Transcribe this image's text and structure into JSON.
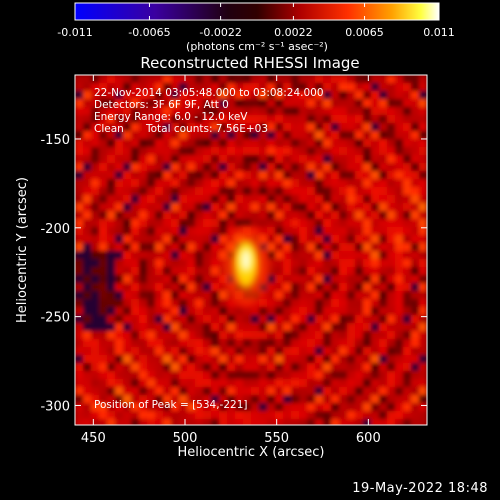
{
  "chart_data": {
    "type": "heatmap",
    "title": "Reconstructed RHESSI Image",
    "xlabel": "Heliocentric X (arcsec)",
    "ylabel": "Heliocentric Y (arcsec)",
    "xlim": [
      440,
      632
    ],
    "ylim": [
      -311,
      -114
    ],
    "xticks": [
      450,
      500,
      550,
      600
    ],
    "yticks": [
      -150,
      -200,
      -250,
      -300
    ],
    "colorbar": {
      "min": -0.011,
      "max": 0.011,
      "ticks": [
        "-0.011",
        "-0.0065",
        "-0.0022",
        "0.0022",
        "0.0065",
        "0.011"
      ],
      "unit_label": "(photons cm⁻² s⁻¹ asec⁻²)",
      "colormap": "rainbow-black-body (blue–black–red–yellow–white)"
    },
    "annotations": {
      "time_range": "22-Nov-2014 03:05:48.000 to 03:08:24.000",
      "detectors": "Detectors: 3F 6F 9F, Att 0",
      "energy": "Energy Range: 6.0 - 12.0 keV",
      "algorithm": "Clean",
      "counts": "Total counts: 7.56E+03",
      "peak": "Position of Peak = [534,-221]"
    },
    "peak": {
      "x": 534,
      "y": -221
    },
    "grid": false
  },
  "footer": {
    "date": "19-May-2022 18:48"
  }
}
